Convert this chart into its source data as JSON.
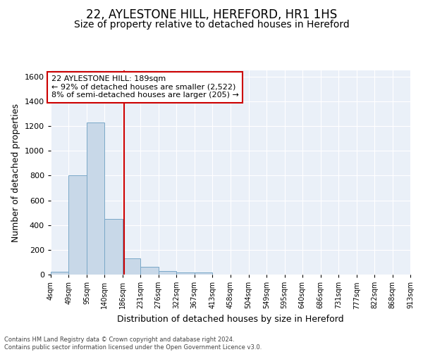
{
  "title": "22, AYLESTONE HILL, HEREFORD, HR1 1HS",
  "subtitle": "Size of property relative to detached houses in Hereford",
  "xlabel": "Distribution of detached houses by size in Hereford",
  "ylabel": "Number of detached properties",
  "bin_edges": [
    4,
    49,
    95,
    140,
    186,
    231,
    276,
    322,
    367,
    413,
    458,
    504,
    549,
    595,
    640,
    686,
    731,
    777,
    822,
    868,
    913
  ],
  "bin_counts": [
    25,
    800,
    1230,
    450,
    130,
    65,
    28,
    18,
    15,
    0,
    0,
    0,
    0,
    0,
    0,
    0,
    0,
    0,
    0,
    0
  ],
  "bar_color": "#c8d8e8",
  "bar_edge_color": "#7aa8c8",
  "property_size": 189,
  "vline_color": "#cc0000",
  "annotation_text": "22 AYLESTONE HILL: 189sqm\n← 92% of detached houses are smaller (2,522)\n8% of semi-detached houses are larger (205) →",
  "annotation_box_color": "white",
  "annotation_box_edge_color": "#cc0000",
  "ylim": [
    0,
    1650
  ],
  "yticks": [
    0,
    200,
    400,
    600,
    800,
    1000,
    1200,
    1400,
    1600
  ],
  "background_color": "#eaf0f8",
  "footer_text": "Contains HM Land Registry data © Crown copyright and database right 2024.\nContains public sector information licensed under the Open Government Licence v3.0.",
  "title_fontsize": 12,
  "subtitle_fontsize": 10,
  "xlabel_fontsize": 9,
  "ylabel_fontsize": 9
}
